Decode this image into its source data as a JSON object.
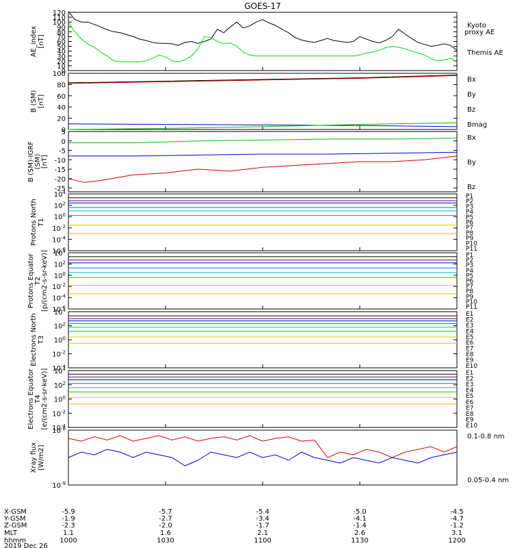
{
  "chart_data": [
    {
      "type": "line",
      "title": "GOES-17",
      "ylabel": "AE_index [nT]",
      "ylim": [
        0,
        120
      ],
      "yticks": [
        "0",
        "10",
        "20",
        "30",
        "40",
        "50",
        "60",
        "70",
        "80",
        "90",
        "100",
        "110",
        "120"
      ],
      "yscale": "linear",
      "legend": [
        "Kyoto proxy AE",
        "Themis AE"
      ],
      "legend_colors": [
        "#00ff00",
        "#000000"
      ],
      "series": [
        {
          "name": "Themis AE",
          "color": "#000000",
          "x": [
            0,
            2,
            4,
            6,
            8,
            10,
            12,
            14,
            16,
            18,
            20,
            22,
            24,
            26,
            28,
            30,
            32,
            34,
            36,
            38,
            40,
            42,
            44,
            46,
            48,
            50,
            52,
            54,
            56,
            58,
            60,
            62,
            64,
            66,
            68,
            70,
            72,
            74,
            76,
            78,
            80,
            82,
            84,
            86,
            88,
            90,
            92,
            94,
            96,
            98,
            100,
            102,
            104,
            106,
            108,
            110,
            112,
            114,
            116,
            118,
            120
          ],
          "y": [
            122,
            105,
            100,
            100,
            95,
            90,
            84,
            80,
            78,
            74,
            70,
            65,
            62,
            58,
            56,
            56,
            55,
            52,
            58,
            60,
            56,
            60,
            65,
            85,
            78,
            90,
            100,
            88,
            92,
            100,
            105,
            98,
            93,
            85,
            78,
            68,
            63,
            60,
            58,
            62,
            66,
            62,
            60,
            58,
            60,
            70,
            65,
            60,
            57,
            62,
            70,
            85,
            75,
            66,
            58,
            54,
            50,
            52,
            55,
            52,
            42
          ]
        },
        {
          "name": "Kyoto proxy AE",
          "color": "#00dd00",
          "x": [
            0,
            2,
            4,
            6,
            8,
            10,
            12,
            14,
            16,
            18,
            20,
            22,
            24,
            26,
            28,
            30,
            32,
            34,
            36,
            38,
            40,
            42,
            44,
            46,
            48,
            50,
            52,
            54,
            56,
            58,
            60,
            62,
            64,
            66,
            68,
            70,
            72,
            74,
            76,
            78,
            80,
            82,
            84,
            86,
            88,
            90,
            92,
            94,
            96,
            98,
            100,
            102,
            104,
            106,
            108,
            110,
            112,
            114,
            116,
            118,
            120
          ],
          "y": [
            100,
            80,
            65,
            55,
            48,
            38,
            30,
            20,
            18,
            18,
            18,
            18,
            20,
            25,
            32,
            28,
            20,
            18,
            22,
            30,
            45,
            70,
            68,
            60,
            55,
            57,
            50,
            38,
            32,
            30,
            30,
            30,
            30,
            30,
            30,
            30,
            30,
            30,
            30,
            30,
            30,
            30,
            30,
            30,
            30,
            32,
            36,
            38,
            42,
            47,
            50,
            48,
            45,
            40,
            36,
            32,
            25,
            20,
            22,
            25,
            18
          ]
        }
      ]
    },
    {
      "type": "line",
      "ylabel": "B (SM) [nT]",
      "ylim": [
        0,
        100
      ],
      "yticks": [
        "0",
        "20",
        "40",
        "60",
        "80",
        "100"
      ],
      "yscale": "linear",
      "legend": [
        "Bx",
        "By",
        "Bz",
        "Bmag"
      ],
      "legend_colors": [
        "#0000cc",
        "#00bb00",
        "#cc0000",
        "#000000"
      ],
      "series": [
        {
          "name": "Bmag",
          "color": "#000000",
          "x": [
            0,
            30,
            60,
            90,
            120
          ],
          "y": [
            83,
            86,
            89,
            92,
            97
          ]
        },
        {
          "name": "Bz",
          "color": "#cc0000",
          "x": [
            0,
            30,
            60,
            90,
            120
          ],
          "y": [
            82,
            85,
            88,
            91,
            96
          ]
        },
        {
          "name": "Bx",
          "color": "#0000cc",
          "x": [
            0,
            30,
            60,
            90,
            120
          ],
          "y": [
            10,
            9,
            8,
            7,
            5
          ]
        },
        {
          "name": "By",
          "color": "#00bb00",
          "x": [
            0,
            30,
            60,
            90,
            120
          ],
          "y": [
            0,
            2,
            5,
            9,
            12
          ]
        }
      ]
    },
    {
      "type": "line",
      "ylabel": "B (SM)-IGRF (SM) [nT]",
      "ylim": [
        -27,
        5
      ],
      "yticks": [
        "-25",
        "-20",
        "-15",
        "-10",
        "-5",
        "0",
        "5"
      ],
      "yscale": "linear",
      "legend": [
        "Bx",
        "By",
        "Bz"
      ],
      "legend_colors": [
        "#0000cc",
        "#00bb00",
        "#cc0000"
      ],
      "series": [
        {
          "name": "By",
          "color": "#00bb00",
          "x": [
            0,
            20,
            40,
            60,
            80,
            100,
            120
          ],
          "y": [
            -1,
            -1,
            0,
            0.5,
            1,
            1,
            1.5
          ]
        },
        {
          "name": "Bx",
          "color": "#0000cc",
          "x": [
            0,
            20,
            40,
            60,
            80,
            100,
            120
          ],
          "y": [
            -8,
            -8,
            -7.5,
            -7,
            -7,
            -6.5,
            -6
          ]
        },
        {
          "name": "Bz",
          "color": "#cc0000",
          "x": [
            0,
            5,
            10,
            20,
            30,
            40,
            50,
            60,
            70,
            80,
            90,
            100,
            110,
            120
          ],
          "y": [
            -20,
            -22,
            -21,
            -18,
            -17,
            -15,
            -16,
            -14,
            -13,
            -12,
            -11,
            -11,
            -10,
            -8
          ]
        }
      ]
    },
    {
      "type": "line",
      "ylabel": "Protons North T1",
      "ylim": [
        -6,
        4
      ],
      "yscale": "log",
      "yticks": [
        "10-6",
        "10-4",
        "10-2",
        "100",
        "102",
        "104"
      ],
      "legend": [
        "P1",
        "P2",
        "P3",
        "P4",
        "P5",
        "P6",
        "P7",
        "P8",
        "P9",
        "P10",
        "P11"
      ],
      "legend_colors": [
        "#000000",
        "#660066",
        "#0000cc",
        "#0077ff",
        "#00bbbb",
        "#00cc00",
        "#ddcc00",
        "#ffaa00",
        "#ff6600",
        "#dd0000",
        "#aa0000"
      ],
      "levels": [
        3.3,
        2.8,
        2.4,
        1.6,
        1.0,
        0.2,
        -1.5,
        -3.0
      ]
    },
    {
      "type": "line",
      "ylabel": "Protons Equator T2 [p/(cm2-s-sr-keV)]",
      "ylim": [
        -6,
        4
      ],
      "yscale": "log",
      "yticks": [
        "10-6",
        "10-4",
        "10-2",
        "100",
        "102",
        "104"
      ],
      "legend": [
        "P1",
        "P2",
        "P3",
        "P4",
        "P5",
        "P6",
        "P7",
        "P8",
        "P9",
        "P10",
        "P11"
      ],
      "legend_colors": [
        "#000000",
        "#660066",
        "#0000cc",
        "#0077ff",
        "#00bbbb",
        "#00cc00",
        "#ddcc00",
        "#ffaa00",
        "#ff6600",
        "#dd0000",
        "#aa0000"
      ],
      "levels": [
        3.3,
        2.7,
        2.2,
        1.3,
        0.5,
        -0.4,
        -1.8,
        -3.3
      ]
    },
    {
      "type": "line",
      "ylabel": "Electrons North T3",
      "ylim": [
        -4,
        4
      ],
      "yscale": "log",
      "yticks": [
        "10-4",
        "10-2",
        "100",
        "102",
        "104"
      ],
      "legend": [
        "E1",
        "E2",
        "E3",
        "E4",
        "E5",
        "E6",
        "E7",
        "E8",
        "E9",
        "E10"
      ],
      "legend_colors": [
        "#000000",
        "#660066",
        "#0000cc",
        "#0077ff",
        "#00bbbb",
        "#00cc00",
        "#ddcc00",
        "#ffaa00",
        "#ff6600",
        "#cc0000"
      ],
      "levels": [
        3.4,
        3.0,
        2.7,
        2.3,
        1.8,
        1.2,
        0.4,
        -0.5
      ]
    },
    {
      "type": "line",
      "ylabel": "Electrons Equator T4 [e/(cm2-s-sr-keV)]",
      "ylim": [
        -4,
        4
      ],
      "yscale": "log",
      "yticks": [
        "10-4",
        "10-2",
        "100",
        "102",
        "104"
      ],
      "legend": [
        "E1",
        "E2",
        "E3",
        "E4",
        "E5",
        "E6",
        "E7",
        "E8",
        "E9",
        "E10"
      ],
      "legend_colors": [
        "#000000",
        "#660066",
        "#0000cc",
        "#0077ff",
        "#00bbbb",
        "#00cc00",
        "#ddcc00",
        "#ffaa00",
        "#ff6600",
        "#cc0000"
      ],
      "levels": [
        3.5,
        3.1,
        2.7,
        2.2,
        1.6,
        1.0,
        0.2,
        -0.7
      ]
    },
    {
      "type": "line",
      "ylabel": "Xray flux [W/m2]",
      "ylim": [
        -9,
        -8
      ],
      "yscale": "log",
      "yticks": [
        "10-9",
        "10-8"
      ],
      "legend": [
        "0.1-0.8 nm",
        "0.05-0.4 nm"
      ],
      "legend_colors": [
        "#dd0000",
        "#0000cc"
      ],
      "series": [
        {
          "name": "0.1-0.8 nm",
          "color": "#dd0000",
          "x": [
            0,
            4,
            8,
            12,
            16,
            20,
            24,
            28,
            32,
            36,
            40,
            44,
            48,
            52,
            56,
            60,
            64,
            68,
            72,
            76,
            80,
            84,
            88,
            92,
            96,
            100,
            104,
            108,
            112,
            116,
            120
          ],
          "y": [
            -8.15,
            -8.2,
            -8.12,
            -8.18,
            -8.1,
            -8.2,
            -8.15,
            -8.1,
            -8.18,
            -8.12,
            -8.2,
            -8.15,
            -8.12,
            -8.18,
            -8.1,
            -8.2,
            -8.15,
            -8.12,
            -8.2,
            -8.18,
            -8.5,
            -8.4,
            -8.45,
            -8.35,
            -8.4,
            -8.5,
            -8.4,
            -8.35,
            -8.3,
            -8.4,
            -8.3
          ]
        },
        {
          "name": "0.05-0.4 nm",
          "color": "#0000cc",
          "x": [
            0,
            4,
            8,
            12,
            16,
            20,
            24,
            28,
            32,
            36,
            40,
            44,
            48,
            52,
            56,
            60,
            64,
            68,
            72,
            76,
            80,
            84,
            88,
            92,
            96,
            100,
            104,
            108,
            112,
            116,
            120
          ],
          "y": [
            -8.5,
            -8.4,
            -8.45,
            -8.35,
            -8.4,
            -8.5,
            -8.4,
            -8.45,
            -8.5,
            -8.65,
            -8.55,
            -8.4,
            -8.45,
            -8.5,
            -8.4,
            -8.5,
            -8.45,
            -8.55,
            -8.4,
            -8.5,
            -8.55,
            -8.6,
            -8.5,
            -8.55,
            -8.6,
            -8.5,
            -8.55,
            -8.6,
            -8.5,
            -8.45,
            -8.4
          ]
        }
      ]
    }
  ],
  "xaxis": {
    "ticks": [
      0,
      30,
      60,
      90,
      120
    ],
    "row_labels": [
      "X-GSM",
      "Y-GSM",
      "Z-GSM",
      "MLT",
      "hhmm",
      "2019 Dec 26"
    ],
    "rows": [
      [
        "-5.9",
        "-5.7",
        "-5.4",
        "-5.0",
        "-4.5"
      ],
      [
        "-1.9",
        "-2.7",
        "-3.4",
        "-4.1",
        "-4.7"
      ],
      [
        "-2.3",
        "-2.0",
        "-1.7",
        "-1.4",
        "-1.2"
      ],
      [
        "1.1",
        "1.6",
        "2.1",
        "2.6",
        "3.1"
      ],
      [
        "1000",
        "1030",
        "1100",
        "1130",
        "1200"
      ]
    ]
  }
}
